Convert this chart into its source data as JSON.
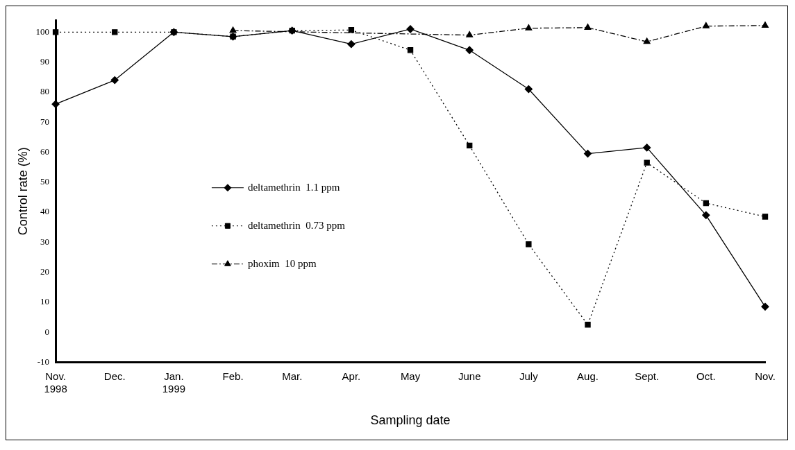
{
  "chart_data": {
    "type": "line",
    "xlabel": "Sampling date",
    "ylabel": "Control rate (%)",
    "categories": [
      "Nov.\n1998",
      "Dec.",
      "Jan.\n1999",
      "Feb.",
      "Mar.",
      "Apr.",
      "May",
      "June",
      "July",
      "Aug.",
      "Sept.",
      "Oct.",
      "Nov."
    ],
    "ylim": [
      -10,
      104
    ],
    "yticks": [
      -10,
      0,
      10,
      20,
      30,
      40,
      50,
      60,
      70,
      80,
      90,
      100
    ],
    "grid": false,
    "legend": "center",
    "series": [
      {
        "name": "deltamethrin  1.1 ppm",
        "color": "#000000",
        "marker": "diamond",
        "line_style": "solid",
        "values": [
          76,
          84,
          100,
          98.5,
          100.5,
          96,
          101,
          94,
          81,
          59.5,
          61.5,
          39,
          8.5
        ]
      },
      {
        "name": "deltamethrin  0.73 ppm",
        "color": "#000000",
        "marker": "square",
        "line_style": "dotted",
        "values": [
          100,
          100,
          100,
          98.5,
          100.5,
          100.7,
          94,
          62.2,
          29.3,
          2.5,
          56.5,
          43,
          38.5
        ]
      },
      {
        "name": "phoxim  10 ppm",
        "color": "#000000",
        "marker": "triangle",
        "line_style": "dashed",
        "values": [
          null,
          null,
          null,
          100.5,
          null,
          null,
          null,
          99,
          101.3,
          101.5,
          96.8,
          102,
          102.2
        ]
      }
    ]
  }
}
